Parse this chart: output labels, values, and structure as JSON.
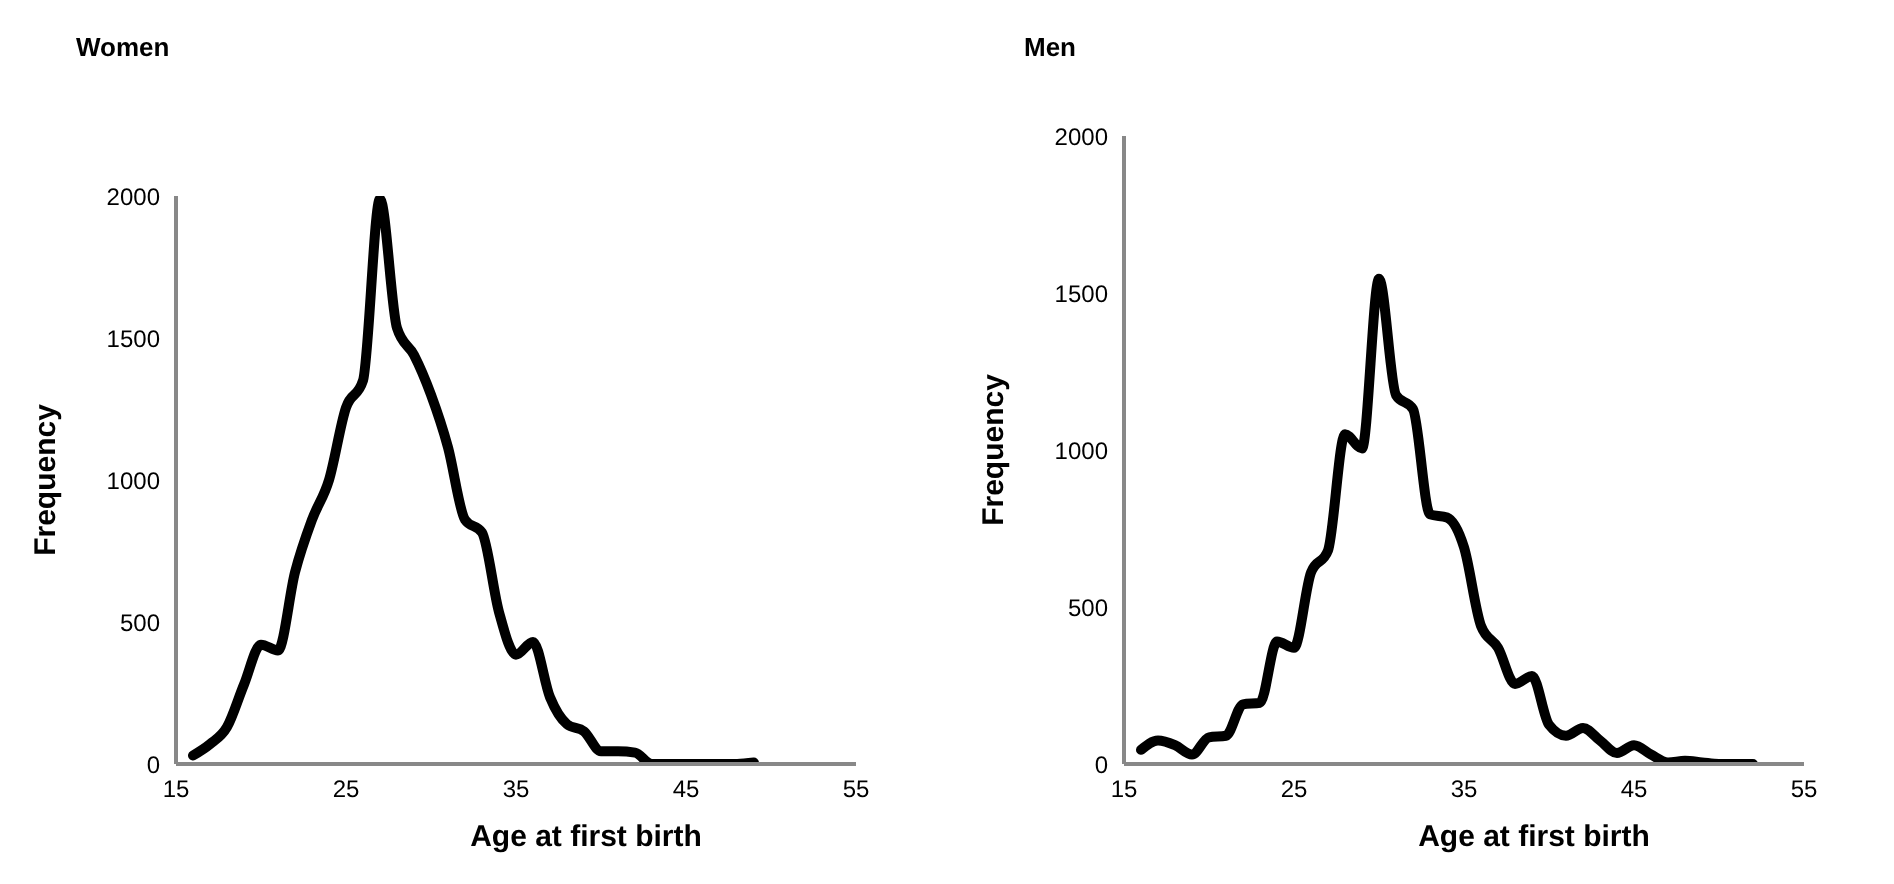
{
  "chart_data": [
    {
      "type": "line",
      "title": "Women",
      "xlabel": "Age at first birth",
      "ylabel": "Frequency",
      "x": [
        16,
        17,
        18,
        19,
        20,
        21,
        22,
        23,
        24,
        25,
        26,
        27,
        28,
        29,
        30,
        31,
        32,
        33,
        34,
        35,
        36,
        37,
        38,
        39,
        40,
        41,
        42,
        43,
        44,
        45,
        46,
        47,
        48,
        49
      ],
      "series": [
        {
          "color": "#000000",
          "values": [
            30,
            70,
            130,
            280,
            420,
            400,
            675,
            860,
            1000,
            1255,
            1350,
            1990,
            1535,
            1440,
            1300,
            1115,
            860,
            815,
            535,
            385,
            430,
            235,
            140,
            115,
            45,
            45,
            40,
            0,
            0,
            0,
            0,
            0,
            0,
            5
          ]
        }
      ],
      "xlim": [
        15,
        55
      ],
      "xticks": [
        15,
        25,
        35,
        45,
        55
      ],
      "ylim": [
        0,
        2000
      ],
      "yticks": [
        0,
        500,
        1000,
        1500,
        2000
      ],
      "marker": "none",
      "line_style": "solid",
      "legend": false,
      "grid": false
    },
    {
      "type": "line",
      "title": "Men",
      "xlabel": "Age at first birth",
      "ylabel": "Frequency",
      "x": [
        16,
        17,
        18,
        19,
        20,
        21,
        22,
        23,
        24,
        25,
        26,
        27,
        28,
        29,
        30,
        31,
        32,
        33,
        34,
        35,
        36,
        37,
        38,
        39,
        40,
        41,
        42,
        43,
        44,
        45,
        46,
        47,
        48,
        49,
        50,
        51,
        52
      ],
      "series": [
        {
          "color": "#000000",
          "values": [
            45,
            75,
            60,
            30,
            85,
            90,
            190,
            195,
            390,
            370,
            610,
            680,
            1050,
            1005,
            1545,
            1175,
            1130,
            795,
            785,
            690,
            440,
            370,
            255,
            280,
            125,
            90,
            115,
            75,
            35,
            60,
            30,
            5,
            10,
            5,
            0,
            0,
            0
          ]
        }
      ],
      "xlim": [
        15,
        55
      ],
      "xticks": [
        15,
        25,
        35,
        45,
        55
      ],
      "ylim": [
        0,
        2000
      ],
      "yticks": [
        0,
        500,
        1000,
        1500,
        2000
      ],
      "marker": "none",
      "line_style": "solid",
      "legend": false,
      "grid": false
    }
  ]
}
